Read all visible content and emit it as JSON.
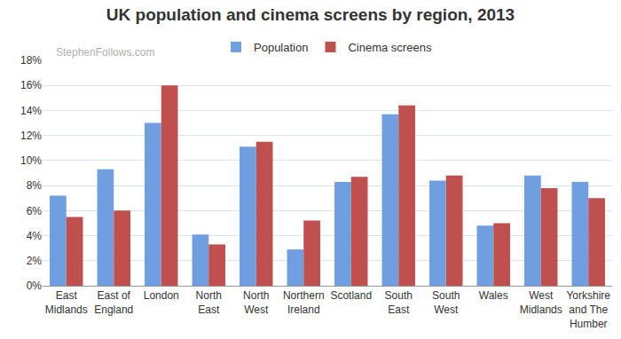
{
  "chart_data": {
    "type": "bar",
    "title": "UK population and cinema screens by region, 2013",
    "annotations": [
      "StephenFollows.com"
    ],
    "categories": [
      "East Midlands",
      "East of England",
      "London",
      "North East",
      "North West",
      "Northern Ireland",
      "Scotland",
      "South East",
      "South West",
      "Wales",
      "West Midlands",
      "Yorkshire and The Humber"
    ],
    "series": [
      {
        "name": "Population",
        "color": "#6f9fe0",
        "values": [
          7.2,
          9.3,
          13.0,
          4.1,
          11.1,
          2.9,
          8.3,
          13.7,
          8.4,
          4.8,
          8.8,
          8.3
        ]
      },
      {
        "name": "Cinema screens",
        "color": "#c0504d",
        "values": [
          5.5,
          6.0,
          16.0,
          3.3,
          11.5,
          5.2,
          8.7,
          14.4,
          8.8,
          5.0,
          7.8,
          7.0
        ]
      }
    ],
    "ylim": [
      0,
      18
    ],
    "yticks": [
      {
        "value": 0,
        "label": "0%"
      },
      {
        "value": 2,
        "label": "2%"
      },
      {
        "value": 4,
        "label": "4%"
      },
      {
        "value": 6,
        "label": "6%"
      },
      {
        "value": 8,
        "label": "8%"
      },
      {
        "value": 10,
        "label": "10%"
      },
      {
        "value": 12,
        "label": "12%"
      },
      {
        "value": 14,
        "label": "14%"
      },
      {
        "value": 16,
        "label": "16%"
      },
      {
        "value": 18,
        "label": "18%"
      }
    ],
    "grid": true,
    "legend": "top"
  }
}
